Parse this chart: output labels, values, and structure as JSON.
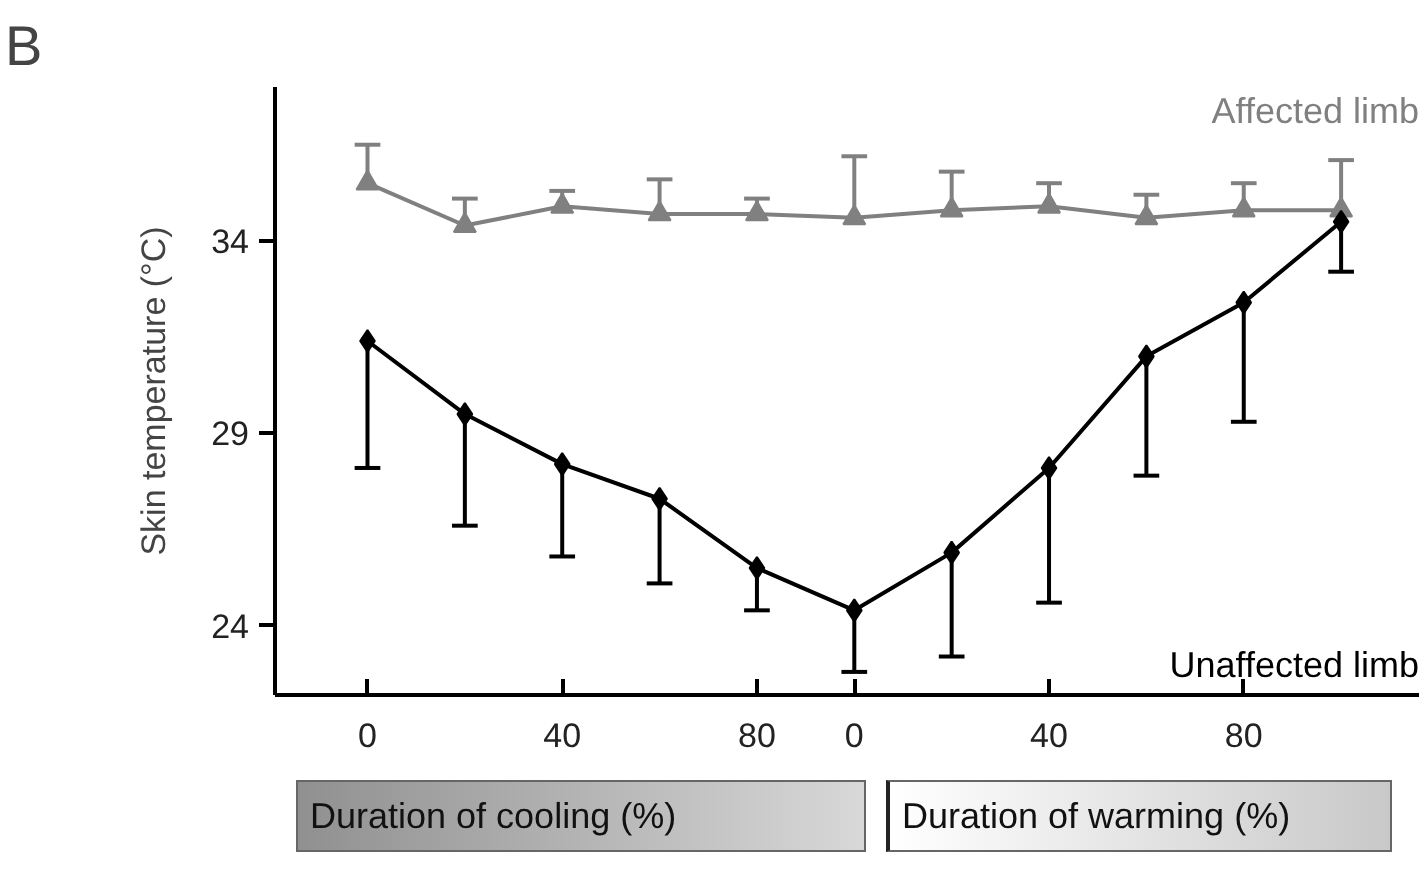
{
  "chart_data": {
    "type": "line",
    "ylabel": "Skin temperature (°C)",
    "categories": [
      "0",
      null,
      "40",
      null,
      "80",
      "0",
      null,
      "40",
      null,
      "80",
      null
    ],
    "ylim": [
      22.2,
      38
    ],
    "yticks": [
      24,
      29,
      34
    ],
    "grid": false,
    "series": [
      {
        "name": "Affected limb",
        "color": "#808080",
        "marker": "triangle",
        "values": [
          35.5,
          34.4,
          34.9,
          34.7,
          34.7,
          34.6,
          34.8,
          34.9,
          34.6,
          34.8,
          34.8
        ],
        "errors": [
          [
            35.5,
            36.5
          ],
          [
            34.4,
            35.1
          ],
          [
            34.9,
            35.3
          ],
          [
            34.7,
            35.6
          ],
          [
            34.7,
            35.1
          ],
          [
            34.6,
            36.2
          ],
          [
            34.8,
            35.8
          ],
          [
            34.9,
            35.5
          ],
          [
            34.6,
            35.2
          ],
          [
            34.8,
            35.5
          ],
          [
            34.8,
            36.1
          ]
        ]
      },
      {
        "name": "Unaffected limb",
        "color": "#000000",
        "marker": "diamond",
        "values": [
          31.4,
          29.5,
          28.2,
          27.3,
          25.5,
          24.4,
          25.9,
          28.1,
          31.0,
          32.4,
          34.5
        ],
        "errors": [
          [
            28.1,
            31.4
          ],
          [
            26.6,
            29.5
          ],
          [
            25.8,
            28.2
          ],
          [
            25.1,
            27.3
          ],
          [
            24.4,
            25.5
          ],
          [
            22.8,
            24.4
          ],
          [
            23.2,
            25.9
          ],
          [
            24.6,
            28.1
          ],
          [
            27.9,
            31.0
          ],
          [
            29.3,
            32.4
          ],
          [
            33.2,
            34.5
          ]
        ]
      }
    ],
    "annotations": [
      "B",
      "Duration of cooling (%)",
      "Duration of warming (%)"
    ]
  }
}
